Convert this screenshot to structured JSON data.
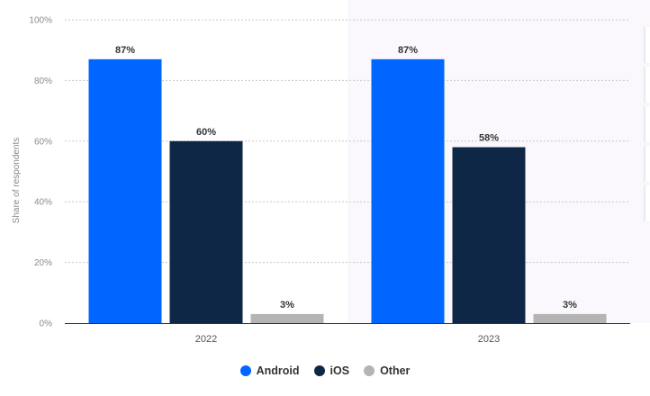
{
  "chart_data": {
    "type": "bar",
    "categories": [
      "2022",
      "2023"
    ],
    "series": [
      {
        "name": "Android",
        "color": "#0066ff",
        "values": [
          87,
          87
        ],
        "labels": [
          "87%",
          "87%"
        ]
      },
      {
        "name": "iOS",
        "color": "#0f2746",
        "values": [
          60,
          58
        ],
        "labels": [
          "60%",
          "58%"
        ]
      },
      {
        "name": "Other",
        "color": "#b4b4b4",
        "values": [
          3,
          3
        ],
        "labels": [
          "3%",
          "3%"
        ]
      }
    ],
    "ylabel": "Share of respondents",
    "ylim": [
      0,
      100
    ],
    "yticks": [
      0,
      20,
      40,
      60,
      80,
      100
    ],
    "ytick_labels": [
      "0%",
      "20%",
      "40%",
      "60%",
      "80%",
      "100%"
    ],
    "grid": true,
    "legend_position": "bottom-center",
    "highlight_background": "#faf8fc"
  }
}
